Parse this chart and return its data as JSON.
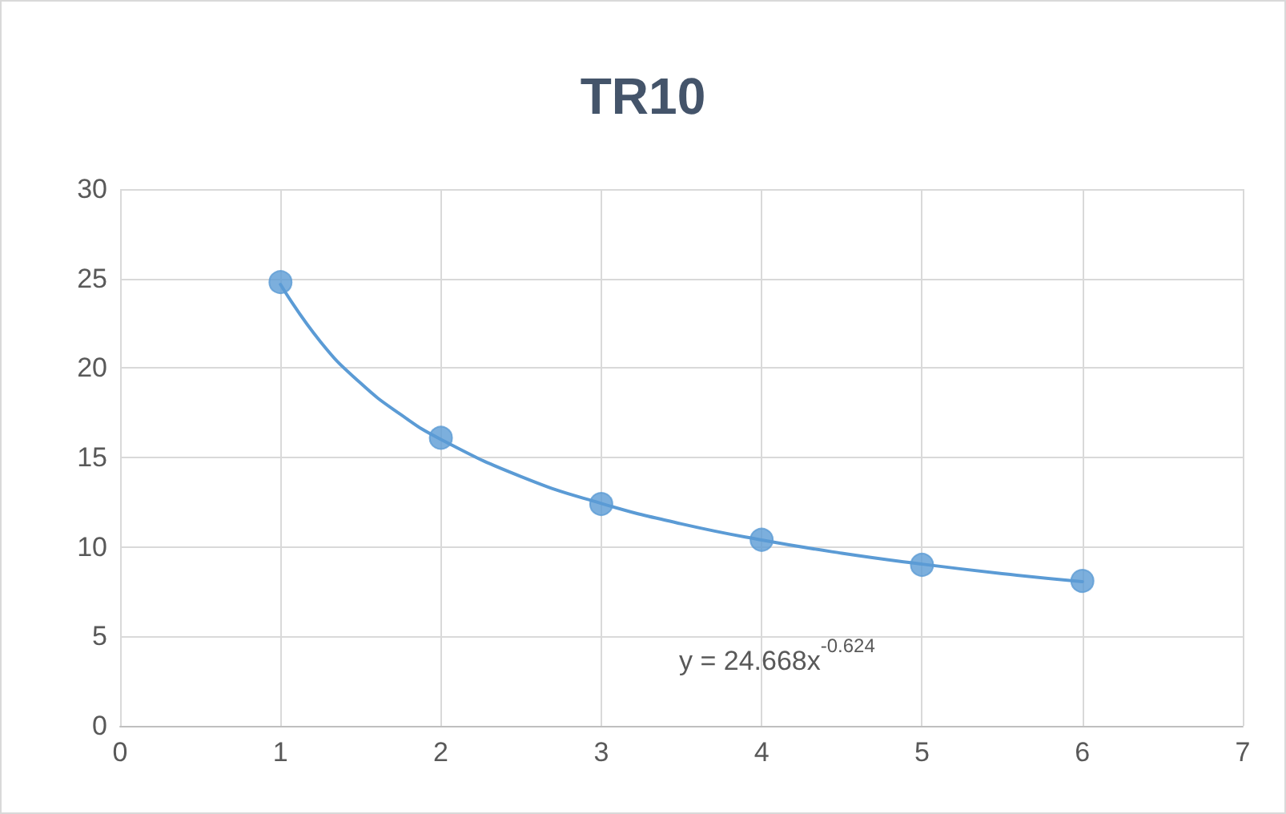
{
  "chart_data": {
    "type": "scatter",
    "title": "TR10",
    "series": [
      {
        "color": "#5b9bd5",
        "x": [
          1,
          2,
          3,
          4,
          5,
          6
        ],
        "values": [
          24.8,
          16.1,
          12.4,
          10.4,
          9.0,
          8.1
        ]
      },
      {
        "type": "line",
        "color": "#5b9bd5",
        "marker": "none",
        "x": [
          1,
          1.25,
          1.5,
          1.75,
          2,
          2.5,
          3,
          3.5,
          4,
          4.5,
          5,
          5.5,
          6
        ],
        "values": [
          24.668,
          21.46,
          19.15,
          17.4,
          16.01,
          13.93,
          12.43,
          11.29,
          10.39,
          9.65,
          9.04,
          8.51,
          8.06
        ]
      }
    ],
    "xlim": [
      0,
      7
    ],
    "xticks": [
      0,
      1,
      2,
      3,
      4,
      5,
      6,
      7
    ],
    "ylim": [
      0,
      30
    ],
    "yticks": [
      0,
      5,
      10,
      15,
      20,
      25,
      30
    ],
    "grid": true,
    "marker": "circle",
    "line_style": "solid",
    "annotations": [
      "y = 24.668x$^{-0.624}$"
    ]
  }
}
